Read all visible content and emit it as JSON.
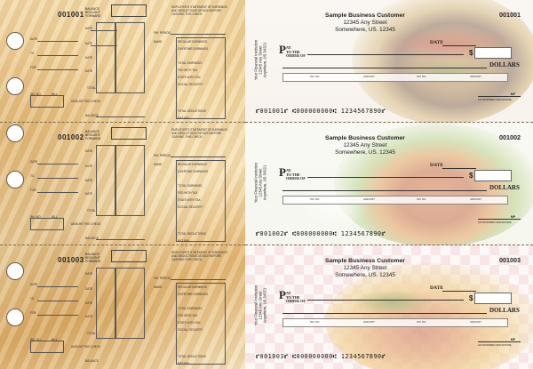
{
  "stubs": [
    {
      "number": "001001",
      "balance_label": "BALANCE BROUGHT FORWARD"
    },
    {
      "number": "001002",
      "balance_label": "BALANCE BROUGHT FORWARD"
    },
    {
      "number": "001003",
      "balance_label": "BALANCE BROUGHT FORWARD"
    }
  ],
  "stub_fields": {
    "date": "DATE",
    "to": "TO",
    "for": "FOR",
    "inv_no": "INV. NO.",
    "bill": "BILL",
    "amount": "AMOUNT",
    "this_check": "THIS CHECK",
    "balance": "BALANCE",
    "total": "TOTAL",
    "deposits": "DEPOSITS"
  },
  "statement": {
    "title": "EMPLOYEE'S STATEMENT OF EARNINGS AND DEDUCTIONS DETACH BEFORE CASHING THIS CHECK",
    "pay_period": "PAY PERIOD",
    "name": "NAME",
    "rows": [
      "REGULAR EARNINGS",
      "OVERTIME EARNINGS",
      "",
      "TOTAL EARNINGS",
      "FED WITH TAX",
      "STATE WITH TAX",
      "SOCIAL SECURITY",
      "",
      "",
      "",
      "TOTAL DEDUCTIONS",
      "NET PAY"
    ]
  },
  "checks": [
    {
      "number": "001001",
      "scene": "burger"
    },
    {
      "number": "001002",
      "scene": "chicken"
    },
    {
      "number": "001003",
      "scene": "hotdog"
    }
  ],
  "check_common": {
    "customer": "Sample Business Customer",
    "address1": "12345 Any Street",
    "address2": "Somewhere, US. 12345",
    "bank_name": "Your Financial Institution",
    "bank_address1": "12345 Any Street",
    "bank_address2": "Anywhere, US 54321",
    "date_label": "DATE",
    "pay_big": "P",
    "pay_small1": "AY",
    "pay_small2": "TO THE",
    "pay_small3": "ORDER OF",
    "dollar_sign": "$",
    "dollars_label": "DOLLARS",
    "memo": [
      "INV NO.",
      "AMOUNT",
      "INV NO.",
      "AMOUNT"
    ],
    "mp": "MP",
    "signature_label": "AUTHORIZED SIGNATURE",
    "micr": "⑈001001⑈ ⑆000000000⑆ 1234567890⑈"
  },
  "micr_lines": [
    "⑈001001⑈ ⑆000000000⑆ 1234567890⑈",
    "⑈001002⑈ ⑆000000000⑆ 1234567890⑈",
    "⑈001003⑈ ⑆000000000⑆ 1234567890⑈"
  ]
}
